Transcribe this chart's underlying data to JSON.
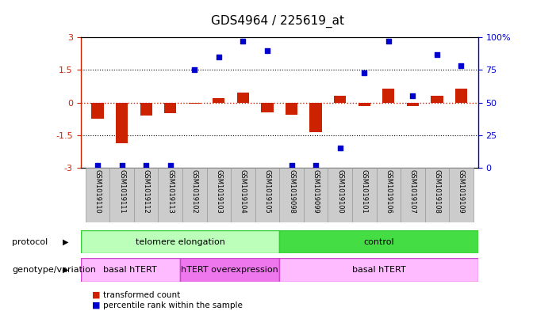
{
  "title": "GDS4964 / 225619_at",
  "samples": [
    "GSM1019110",
    "GSM1019111",
    "GSM1019112",
    "GSM1019113",
    "GSM1019102",
    "GSM1019103",
    "GSM1019104",
    "GSM1019105",
    "GSM1019098",
    "GSM1019099",
    "GSM1019100",
    "GSM1019101",
    "GSM1019106",
    "GSM1019107",
    "GSM1019108",
    "GSM1019109"
  ],
  "bar_values": [
    -0.75,
    -1.85,
    -0.6,
    -0.5,
    -0.05,
    0.2,
    0.45,
    -0.45,
    -0.55,
    -1.35,
    0.3,
    -0.15,
    0.65,
    -0.15,
    0.3,
    0.65
  ],
  "scatter_pct": [
    2,
    2,
    2,
    2,
    75,
    85,
    97,
    90,
    2,
    2,
    15,
    73,
    97,
    55,
    87,
    78
  ],
  "bar_color": "#cc2200",
  "scatter_color": "#0000cc",
  "ylim": [
    -3,
    3
  ],
  "y2lim": [
    0,
    100
  ],
  "yticks": [
    -3,
    -1.5,
    0,
    1.5,
    3
  ],
  "ytick_labels": [
    "-3",
    "-1.5",
    "0",
    "1.5",
    "3"
  ],
  "y2ticks": [
    0,
    25,
    50,
    75,
    100
  ],
  "y2tick_labels": [
    "0",
    "25",
    "50",
    "75",
    "100%"
  ],
  "dotted_lines": [
    -1.5,
    1.5
  ],
  "protocol_groups": [
    {
      "label": "telomere elongation",
      "start": 0,
      "end": 7,
      "color": "#bbffbb",
      "border": "#33cc33"
    },
    {
      "label": "control",
      "start": 8,
      "end": 15,
      "color": "#44dd44",
      "border": "#33cc33"
    }
  ],
  "genotype_groups": [
    {
      "label": "basal hTERT",
      "start": 0,
      "end": 3,
      "color": "#ffbbff",
      "border": "#cc44cc"
    },
    {
      "label": "hTERT overexpression",
      "start": 4,
      "end": 7,
      "color": "#ee77ee",
      "border": "#cc44cc"
    },
    {
      "label": "basal hTERT",
      "start": 8,
      "end": 15,
      "color": "#ffbbff",
      "border": "#cc44cc"
    }
  ],
  "legend_items": [
    {
      "label": "transformed count",
      "color": "#cc2200"
    },
    {
      "label": "percentile rank within the sample",
      "color": "#0000cc"
    }
  ],
  "protocol_label": "protocol",
  "genotype_label": "genotype/variation",
  "bg_color": "#ffffff"
}
